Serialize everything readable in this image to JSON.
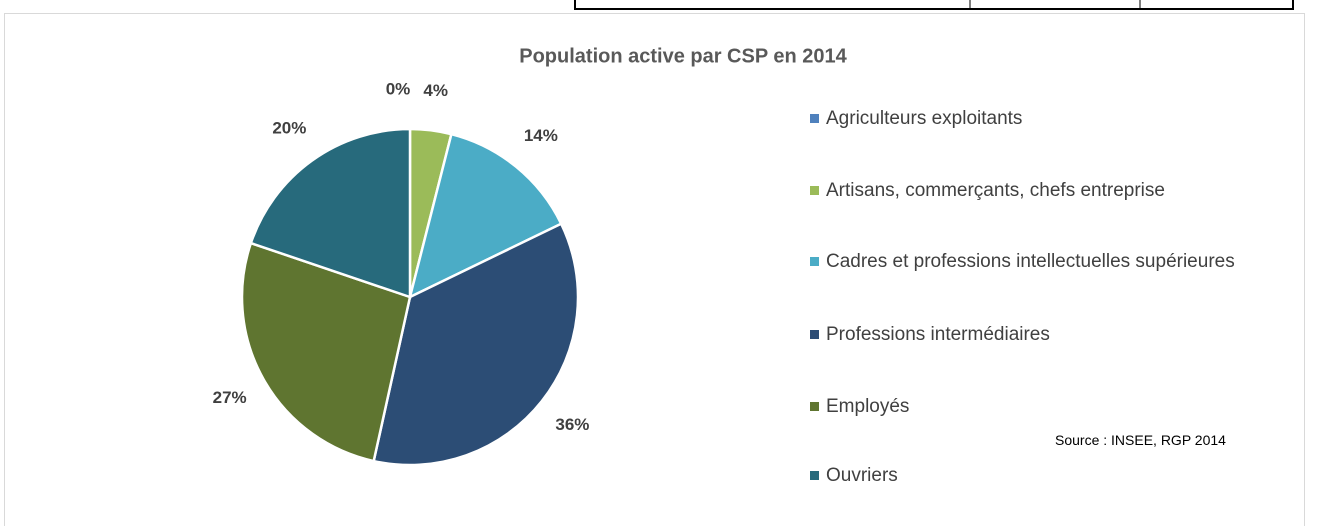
{
  "chart_data": {
    "type": "pie",
    "title": "Population active par CSP en 2014",
    "categories": [
      "Agriculteurs exploitants",
      "Artisans, commerçants, chefs entreprise",
      "Cadres et professions intellectuelles supérieures",
      "Professions intermédiaires",
      "Employés",
      "Ouvriers"
    ],
    "values": [
      0,
      4,
      14,
      36,
      27,
      20
    ],
    "value_labels": [
      "0%",
      "4%",
      "14%",
      "36%",
      "27%",
      "20%"
    ],
    "colors": [
      "#4f81bd",
      "#9bbb59",
      "#4bacc6",
      "#2c4d75",
      "#5f7530",
      "#276a7c"
    ],
    "legend": "right",
    "annotation": "Source : INSEE, RGP 2014"
  }
}
